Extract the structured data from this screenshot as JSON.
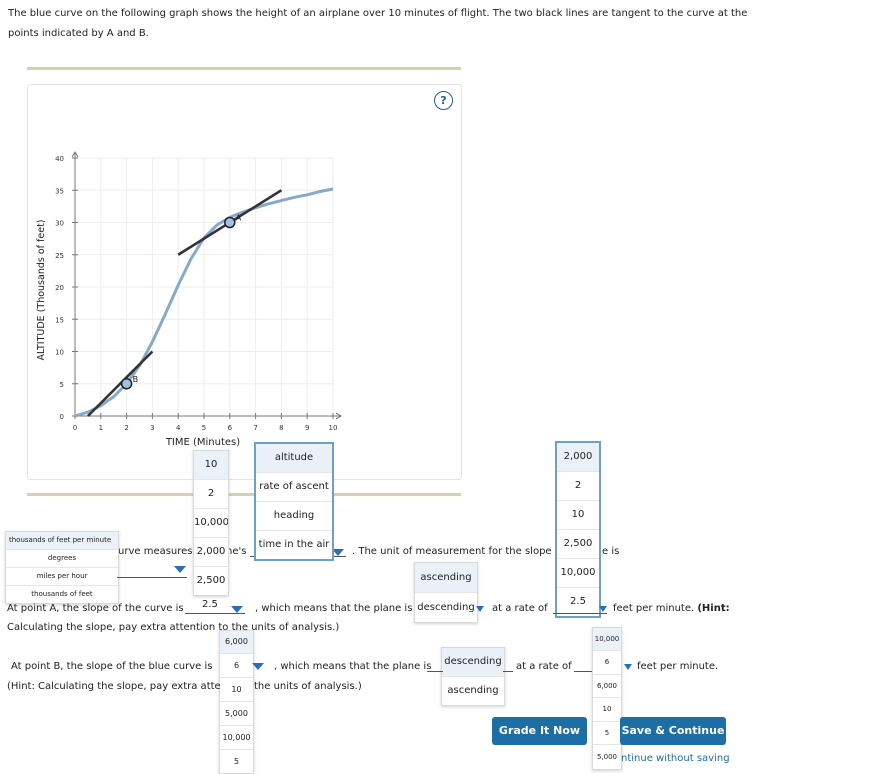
{
  "intro": {
    "line1": "The blue curve on the following graph shows the height of an airplane over 10 minutes of flight. The two black lines are tangent to the curve at the",
    "line2": "points indicated by A and B."
  },
  "help_label": "?",
  "chart_data": {
    "type": "line",
    "xlabel": "TIME (Minutes)",
    "ylabel": "ALTITUDE (Thousands of feet)",
    "xlim": [
      0,
      10
    ],
    "ylim": [
      0,
      40
    ],
    "x_ticks": [
      "0",
      "1",
      "2",
      "3",
      "4",
      "5",
      "6",
      "7",
      "8",
      "9",
      "10"
    ],
    "y_ticks": [
      "0",
      "5",
      "10",
      "15",
      "20",
      "25",
      "30",
      "35",
      "40"
    ],
    "series": [
      {
        "name": "",
        "color": "#86a9cc",
        "x": [
          0,
          0.5,
          1,
          1.5,
          2,
          2.5,
          3,
          3.5,
          4,
          4.5,
          5,
          5.5,
          6,
          6.5,
          7,
          7.5,
          8,
          8.5,
          9,
          9.5,
          10
        ],
        "y": [
          0,
          0.6,
          1.6,
          3.0,
          5.0,
          7.8,
          11.5,
          15.8,
          20.3,
          24.4,
          27.6,
          29.6,
          30.8,
          31.6,
          32.3,
          32.9,
          33.4,
          33.9,
          34.3,
          34.8,
          35.2
        ]
      }
    ],
    "points": [
      {
        "label": "A",
        "x": 6,
        "y": 30
      },
      {
        "label": "B",
        "x": 2,
        "y": 5
      }
    ],
    "tangents": [
      {
        "point": "A",
        "x1": 4,
        "y1": 25,
        "x2": 8,
        "y2": 35,
        "color": "#333333"
      },
      {
        "point": "B",
        "x1": 0.5,
        "y1": 0,
        "x2": 3,
        "y2": 10,
        "color": "#333333"
      }
    ]
  },
  "q1": {
    "text_a": "urve measures",
    "text_b": "ne's",
    "text_c": ". The unit of measurement for the slope",
    "text_d": "e is"
  },
  "qA": {
    "prefix": "At point A, the slope of the curve is",
    "selected": "2.5",
    "mid": ", which means that the plane is",
    "mid2": "at a rate of",
    "suffix": "feet per minute.",
    "hint_bold": "(Hint:",
    "line2": "Calculating the slope, pay extra attention to the units of analysis.)"
  },
  "qB": {
    "prefix": "At point B, the slope of the blue curve is",
    "selected": "6",
    "mid": ", which means that the plane is",
    "mid2": "at a rate of",
    "suffix": "feet per minute.",
    "hint_a": "(Hint: Calculating the slope, pay extra atte",
    "hint_b": "the units of analysis.)"
  },
  "dd_left_units": [
    "thousands of feet per minute",
    "degrees",
    "miles per hour",
    "thousands of feet"
  ],
  "dd_values1": [
    "10",
    "2",
    "10,000",
    "2,000",
    "2,500",
    "2.5"
  ],
  "dd_measure": [
    "altitude",
    "rate of ascent",
    "heading",
    "time in the air"
  ],
  "dd_rate": [
    "2,000",
    "2",
    "10",
    "2,500",
    "10,000",
    "2.5"
  ],
  "dd_dir_A": [
    "ascending",
    "descending"
  ],
  "dd_valuesB": [
    "6,000",
    "6",
    "10",
    "5,000",
    "10,000",
    "5"
  ],
  "dd_dir_B": [
    "descending",
    "ascending"
  ],
  "dd_rateB": [
    "10,000",
    "6",
    "6,000",
    "10",
    "5",
    "5,000"
  ],
  "buttons": {
    "grade": "Grade It Now",
    "save": "Save & Continue",
    "continue": "ntinue without saving"
  }
}
